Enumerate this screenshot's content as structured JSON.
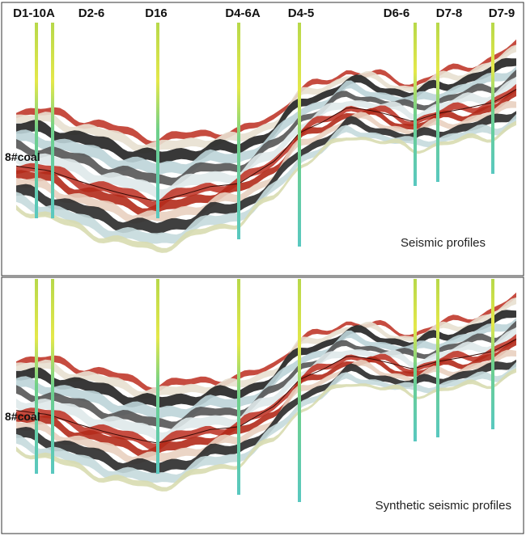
{
  "wells": [
    "D1-10A",
    "D2-6",
    "D16",
    "D4-6A",
    "D4-5",
    "D6-6",
    "D7-8",
    "D7-9"
  ],
  "top_panel": {
    "coal_label": "8#coal",
    "caption": "Seismic profiles"
  },
  "bottom_panel": {
    "coal_label": "8#coal",
    "caption": "Synthetic seismic profiles"
  }
}
